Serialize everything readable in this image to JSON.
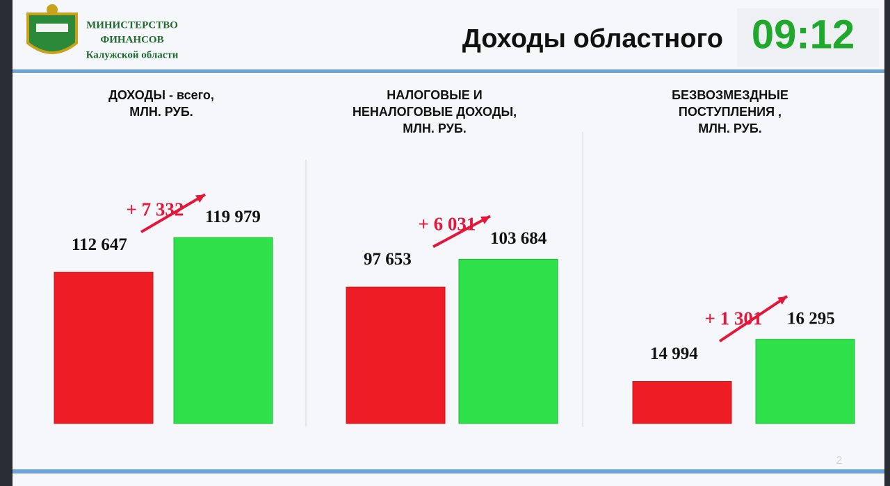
{
  "header": {
    "org": [
      "МИНИСТЕРСТВО",
      "ФИНАНСОВ",
      "Калужской области"
    ],
    "title": "Доходы областного",
    "clock": "09:12"
  },
  "page_number": "2",
  "chart_data": [
    {
      "type": "bar",
      "title": [
        "ДОХОДЫ - всего,",
        "МЛН. РУБ."
      ],
      "categories": [
        null,
        null
      ],
      "values": [
        112647,
        119979
      ],
      "value_labels": [
        "112 647",
        "119 979"
      ],
      "colors": [
        "#ee1c24",
        "#2ee04a"
      ],
      "annotation": "+ 7 332",
      "ylim": [
        80700,
        133500
      ]
    },
    {
      "type": "bar",
      "title": [
        "НАЛОГОВЫЕ И",
        "НЕНАЛОГОВЫЕ ДОХОДЫ,",
        "МЛН. РУБ."
      ],
      "categories": [
        null,
        null
      ],
      "values": [
        97653,
        103684
      ],
      "value_labels": [
        "97 653",
        "103 684"
      ],
      "colors": [
        "#ee1c24",
        "#2ee04a"
      ],
      "annotation": "+ 6 031",
      "ylim": [
        68000,
        122300
      ]
    },
    {
      "type": "bar",
      "title": [
        "БЕЗВОЗМЕЗДНЫЕ",
        "ПОСТУПЛЕНИЯ ,",
        "МЛН. РУБ."
      ],
      "categories": [
        null,
        null
      ],
      "values": [
        14994,
        16295
      ],
      "value_labels": [
        "14 994",
        "16 295"
      ],
      "colors": [
        "#ee1c24",
        "#2ee04a"
      ],
      "annotation": "+ 1 301",
      "ylim": [
        13700,
        21400
      ]
    }
  ]
}
